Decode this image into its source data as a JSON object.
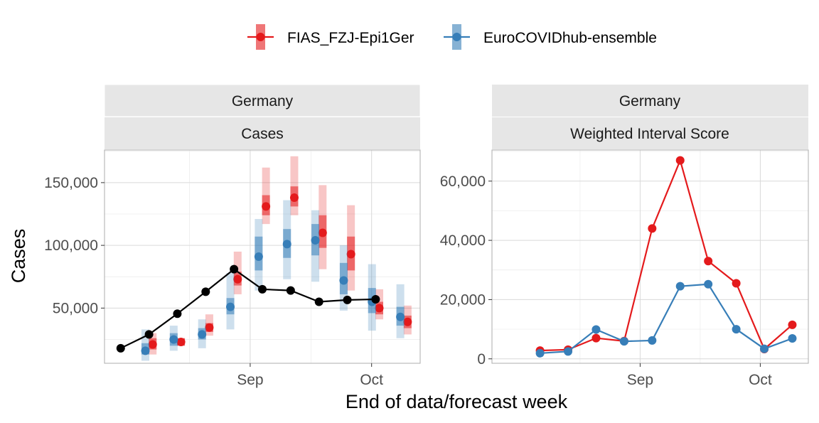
{
  "legend": {
    "items": [
      {
        "label": "FIAS_FZJ-Epi1Ger",
        "color": "#e41a1c"
      },
      {
        "label": "EuroCOVIDhub-ensemble",
        "color": "#377eb8"
      }
    ]
  },
  "axes": {
    "xlabel": "End of data/forecast week",
    "ylabel": "Cases"
  },
  "chart_data": [
    {
      "type": "line",
      "strip": [
        "Germany",
        "Cases"
      ],
      "weeks": [
        "2021-07-31",
        "2021-08-07",
        "2021-08-14",
        "2021-08-21",
        "2021-08-28",
        "2021-09-04",
        "2021-09-11",
        "2021-09-18",
        "2021-09-25",
        "2021-10-02",
        "2021-10-09"
      ],
      "x_ticks": [
        {
          "date": "2021-09-01",
          "label": "Sep"
        },
        {
          "date": "2021-10-01",
          "label": "Oct"
        }
      ],
      "y_ticks": [
        {
          "value": 50000,
          "label": "50,000"
        },
        {
          "value": 100000,
          "label": "100,000"
        },
        {
          "value": 150000,
          "label": "150,000"
        }
      ],
      "ylim": [
        6000,
        176000
      ],
      "xlim": [
        "2021-07-27",
        "2021-10-13"
      ],
      "observed": {
        "color": "#000000",
        "values": [
          18000,
          29000,
          45500,
          63000,
          81000,
          65000,
          64000,
          55000,
          56500,
          57000
        ]
      },
      "series": [
        {
          "name": "FIAS_FZJ-Epi1Ger",
          "color": "#e41a1c",
          "side": 1,
          "median": [
            21000,
            23000,
            34500,
            73000,
            131000,
            138000,
            110000,
            93000,
            50000,
            39000
          ],
          "inner": [
            [
              17000,
              26000
            ],
            [
              20000,
              26000
            ],
            [
              31000,
              38000
            ],
            [
              68000,
              79000
            ],
            [
              124000,
              140000
            ],
            [
              131000,
              147000
            ],
            [
              98000,
              124000
            ],
            [
              80000,
              107000
            ],
            [
              45000,
              55000
            ],
            [
              34000,
              44000
            ]
          ],
          "outer": [
            [
              13000,
              30000
            ],
            [
              20000,
              26000
            ],
            [
              28000,
              45000
            ],
            [
              61000,
              95000
            ],
            [
              117000,
              162000
            ],
            [
              124000,
              171000
            ],
            [
              81000,
              148000
            ],
            [
              64000,
              132000
            ],
            [
              41000,
              65000
            ],
            [
              29000,
              52000
            ]
          ]
        },
        {
          "name": "EuroCOVIDhub-ensemble",
          "color": "#377eb8",
          "side": -1,
          "median": [
            16000,
            25000,
            29000,
            51000,
            91000,
            101000,
            104000,
            72000,
            55000,
            43000
          ],
          "inner": [
            [
              13000,
              22000
            ],
            [
              20000,
              30000
            ],
            [
              25000,
              34000
            ],
            [
              45000,
              58000
            ],
            [
              80000,
              107000
            ],
            [
              90000,
              113000
            ],
            [
              92000,
              117000
            ],
            [
              61000,
              86000
            ],
            [
              46000,
              66000
            ],
            [
              36000,
              51000
            ]
          ],
          "outer": [
            [
              8000,
              33000
            ],
            [
              16000,
              36000
            ],
            [
              18000,
              41000
            ],
            [
              33000,
              78000
            ],
            [
              64000,
              121000
            ],
            [
              73000,
              136000
            ],
            [
              71000,
              128000
            ],
            [
              48000,
              100000
            ],
            [
              32000,
              85000
            ],
            [
              26000,
              69000
            ]
          ]
        }
      ]
    },
    {
      "type": "line",
      "strip": [
        "Germany",
        "Weighted Interval Score"
      ],
      "weeks": [
        "2021-07-31",
        "2021-08-07",
        "2021-08-14",
        "2021-08-21",
        "2021-08-28",
        "2021-09-04",
        "2021-09-11",
        "2021-09-18",
        "2021-09-25",
        "2021-10-02",
        "2021-10-09"
      ],
      "x_ticks": [
        {
          "date": "2021-09-01",
          "label": "Sep"
        },
        {
          "date": "2021-10-01",
          "label": "Oct"
        }
      ],
      "y_ticks": [
        {
          "value": 0,
          "label": "0"
        },
        {
          "value": 20000,
          "label": "20,000"
        },
        {
          "value": 40000,
          "label": "40,000"
        },
        {
          "value": 60000,
          "label": "60,000"
        }
      ],
      "ylim": [
        -1500,
        70500
      ],
      "xlim": [
        "2021-07-26",
        "2021-10-13"
      ],
      "series": [
        {
          "name": "FIAS_FZJ-Epi1Ger",
          "color": "#e41a1c",
          "values": [
            2800,
            3100,
            7000,
            6000,
            44000,
            67000,
            33000,
            25500,
            3300,
            11500
          ]
        },
        {
          "name": "EuroCOVIDhub-ensemble",
          "color": "#377eb8",
          "values": [
            1900,
            2500,
            9900,
            5900,
            6200,
            24500,
            25200,
            10000,
            3400,
            6900
          ]
        }
      ]
    }
  ]
}
